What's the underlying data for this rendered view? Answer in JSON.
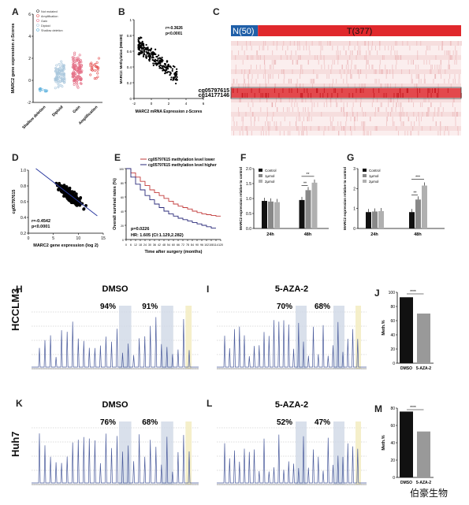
{
  "panel_labels": [
    "A",
    "B",
    "C",
    "D",
    "E",
    "F",
    "G",
    "H",
    "I",
    "J",
    "K",
    "L",
    "M"
  ],
  "row_labels": {
    "h": "HCCLM3",
    "k": "Huh7"
  },
  "watermark": "伯豪生物",
  "chart_data": [
    {
      "id": "A",
      "type": "scatter",
      "ylabel": "MARC2 gene expression z-Scores",
      "categories": [
        "Shallow deletion",
        "Diploid",
        "Gain",
        "Amplification"
      ],
      "legend": [
        "Not mutated",
        "Amplification",
        "Gain",
        "Diploid",
        "Shallow deletion"
      ],
      "colors": [
        "#5ab0dd",
        "#a8c6dc",
        "#e46f86",
        "#e45050"
      ],
      "ylim": [
        -2,
        6
      ],
      "yticks": [
        "-2",
        "0",
        "2",
        "4",
        "6"
      ],
      "group_means": [
        -0.8,
        0.6,
        0.9,
        1.1
      ],
      "group_spread": [
        0.6,
        1.6,
        2.0,
        1.4
      ],
      "group_counts": [
        10,
        90,
        120,
        25
      ]
    },
    {
      "id": "B",
      "type": "scatter",
      "xlabel": "MARC2 mRNA Expression z-Scores",
      "ylabel": "MARC2: Methylation (HM450)",
      "annotation": [
        "r=-0.3626",
        "p<0.0001"
      ],
      "xlim": [
        -2,
        6
      ],
      "ylim": [
        0,
        1
      ],
      "xticks": [
        "-2",
        "0",
        "2",
        "4",
        "6"
      ],
      "yticks": [
        "0",
        "0.2",
        "0.4",
        "0.6",
        "0.8",
        "1"
      ]
    },
    {
      "id": "C",
      "type": "heatmap",
      "groups": [
        {
          "name": "N(50)",
          "color": "#1f5fa8",
          "n": 50
        },
        {
          "name": "T(377)",
          "color": "#e0282c",
          "n": 377
        }
      ],
      "highlighted_rows": [
        "cg05797615",
        "cg14177146"
      ]
    },
    {
      "id": "D",
      "type": "scatter",
      "xlabel": "MARC2 gene expression (log 2)",
      "ylabel": "cg05797615",
      "annotation": [
        "r=-0.4542",
        "p<0.0001"
      ],
      "xlim": [
        0,
        15
      ],
      "ylim": [
        0.2,
        1.0
      ],
      "xticks": [
        "0",
        "5",
        "10",
        "15"
      ],
      "yticks": [
        "0.2",
        "0.4",
        "0.6",
        "0.8",
        "1.0"
      ]
    },
    {
      "id": "E",
      "type": "line",
      "xlabel": "Time after surgery (months)",
      "ylabel": "Overall survival rates (%)",
      "series": [
        {
          "name": "cg05797615 methylation level lower",
          "color": "#c23b3b",
          "x": [
            0,
            6,
            12,
            18,
            24,
            30,
            36,
            42,
            48,
            54,
            60,
            66,
            72,
            78,
            84,
            90,
            96,
            102,
            108,
            114,
            120
          ],
          "y": [
            100,
            94,
            88,
            82,
            76,
            70,
            66,
            62,
            58,
            54,
            50,
            47,
            45,
            43,
            40,
            38,
            36,
            35,
            34,
            33,
            33
          ]
        },
        {
          "name": "cg05797615 methylation level higher",
          "color": "#2a2a7a",
          "x": [
            0,
            6,
            12,
            18,
            24,
            30,
            36,
            42,
            48,
            54,
            60,
            66,
            72,
            78,
            84,
            90,
            96,
            102,
            108,
            114
          ],
          "y": [
            100,
            88,
            78,
            70,
            62,
            56,
            50,
            45,
            40,
            36,
            33,
            30,
            28,
            26,
            24,
            22,
            20,
            18,
            16,
            16
          ]
        }
      ],
      "annotation": [
        "p=0.0226",
        "HR: 1.605 (CI:1.129,2.282)"
      ],
      "xlim": [
        0,
        120
      ],
      "ylim": [
        0,
        100
      ],
      "xticks": [
        "0",
        "6",
        "12",
        "18",
        "24",
        "30",
        "36",
        "42",
        "48",
        "54",
        "60",
        "66",
        "72",
        "78",
        "84",
        "90",
        "96",
        "102",
        "108",
        "114",
        "120"
      ],
      "yticks": [
        "0",
        "20",
        "40",
        "60",
        "80",
        "100"
      ]
    },
    {
      "id": "F",
      "type": "bar",
      "ylabel": "MARC2 expression relative to control",
      "categories": [
        "24h",
        "48h"
      ],
      "series": [
        {
          "name": "Control",
          "color": "#111111",
          "values": [
            0.92,
            0.95
          ]
        },
        {
          "name": "1μmol",
          "color": "#888888",
          "values": [
            0.9,
            1.28
          ]
        },
        {
          "name": "2μmol",
          "color": "#b0b0b0",
          "values": [
            0.88,
            1.53
          ]
        }
      ],
      "ylim": [
        0,
        2.0
      ],
      "yticks": [
        "0.0",
        "0.5",
        "1.0",
        "1.5",
        "2.0"
      ],
      "sig": [
        "**",
        "**"
      ]
    },
    {
      "id": "G",
      "type": "bar",
      "ylabel": "MARC2 expression relative to control",
      "categories": [
        "24h",
        "48h"
      ],
      "series": [
        {
          "name": "Control",
          "color": "#111111",
          "values": [
            0.82,
            0.82
          ]
        },
        {
          "name": "1μmol",
          "color": "#888888",
          "values": [
            0.85,
            1.45
          ]
        },
        {
          "name": "2μmol",
          "color": "#b0b0b0",
          "values": [
            0.87,
            2.15
          ]
        }
      ],
      "ylim": [
        0,
        3.0
      ],
      "yticks": [
        "0",
        "1",
        "2",
        "3"
      ],
      "sig": [
        "**",
        "***"
      ]
    },
    {
      "id": "H",
      "type": "line",
      "title": "DMSO",
      "percents": [
        "94%",
        "91%"
      ]
    },
    {
      "id": "I",
      "type": "line",
      "title": "5-AZA-2",
      "percents": [
        "70%",
        "68%"
      ]
    },
    {
      "id": "J",
      "type": "bar",
      "ylabel": "Meth.%",
      "categories": [
        "DMSO",
        "5-AZA-2"
      ],
      "values": [
        93,
        70
      ],
      "colors": [
        "#111111",
        "#999999"
      ],
      "ylim": [
        0,
        100
      ],
      "yticks": [
        "0",
        "20",
        "40",
        "60",
        "80",
        "100"
      ],
      "sig": "****"
    },
    {
      "id": "K",
      "type": "line",
      "title": "DMSO",
      "percents": [
        "76%",
        "68%"
      ]
    },
    {
      "id": "L",
      "type": "line",
      "title": "5-AZA-2",
      "percents": [
        "52%",
        "47%"
      ]
    },
    {
      "id": "M",
      "type": "bar",
      "ylabel": "Meth.%",
      "categories": [
        "DMSO",
        "5-AZA-2"
      ],
      "values": [
        76,
        53
      ],
      "colors": [
        "#111111",
        "#999999"
      ],
      "ylim": [
        0,
        80
      ],
      "yticks": [
        "0",
        "20",
        "40",
        "60",
        "80"
      ],
      "sig": "****"
    }
  ]
}
